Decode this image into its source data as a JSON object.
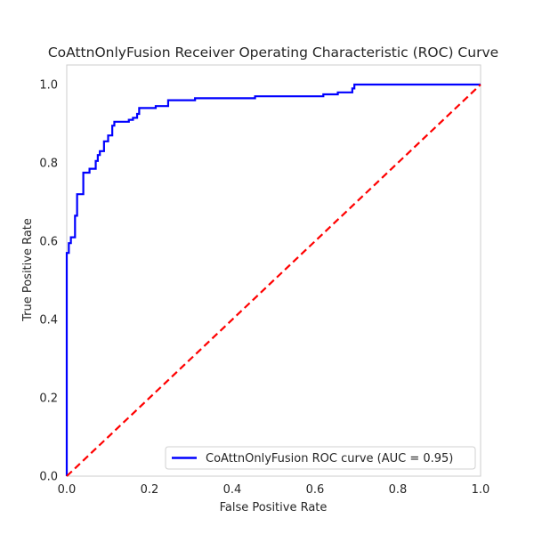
{
  "chart_data": {
    "type": "line",
    "title": "CoAttnOnlyFusion Receiver Operating Characteristic (ROC) Curve",
    "xlabel": "False Positive Rate",
    "ylabel": "True Positive Rate",
    "xlim": [
      0.0,
      1.0
    ],
    "ylim": [
      0.0,
      1.05
    ],
    "x_ticks": [
      "0.0",
      "0.2",
      "0.4",
      "0.6",
      "0.8",
      "1.0"
    ],
    "y_ticks": [
      "0.0",
      "0.2",
      "0.4",
      "0.6",
      "0.8",
      "1.0"
    ],
    "grid": false,
    "legend_position": "lower-right",
    "series": [
      {
        "name": "CoAttnOnlyFusion ROC curve (AUC = 0.95)",
        "color": "#0000ff",
        "style": "solid",
        "x": [
          0.0,
          0.0,
          0.005,
          0.005,
          0.01,
          0.01,
          0.02,
          0.02,
          0.025,
          0.025,
          0.04,
          0.04,
          0.055,
          0.055,
          0.07,
          0.07,
          0.075,
          0.075,
          0.08,
          0.08,
          0.09,
          0.09,
          0.1,
          0.1,
          0.11,
          0.11,
          0.115,
          0.115,
          0.15,
          0.15,
          0.16,
          0.16,
          0.17,
          0.17,
          0.175,
          0.175,
          0.215,
          0.215,
          0.245,
          0.245,
          0.31,
          0.31,
          0.455,
          0.455,
          0.62,
          0.62,
          0.655,
          0.655,
          0.69,
          0.69,
          0.695,
          0.695,
          1.0
        ],
        "y": [
          0.0,
          0.57,
          0.57,
          0.595,
          0.595,
          0.61,
          0.61,
          0.665,
          0.665,
          0.72,
          0.72,
          0.775,
          0.775,
          0.785,
          0.785,
          0.805,
          0.805,
          0.82,
          0.82,
          0.83,
          0.83,
          0.855,
          0.855,
          0.87,
          0.87,
          0.895,
          0.895,
          0.905,
          0.905,
          0.91,
          0.91,
          0.915,
          0.915,
          0.925,
          0.925,
          0.94,
          0.94,
          0.945,
          0.945,
          0.96,
          0.96,
          0.965,
          0.965,
          0.97,
          0.97,
          0.975,
          0.975,
          0.98,
          0.98,
          0.99,
          0.99,
          1.0,
          1.0
        ]
      },
      {
        "name": "",
        "color": "#ff0000",
        "style": "dashed",
        "x": [
          0.0,
          1.0
        ],
        "y": [
          0.0,
          1.0
        ]
      }
    ]
  }
}
